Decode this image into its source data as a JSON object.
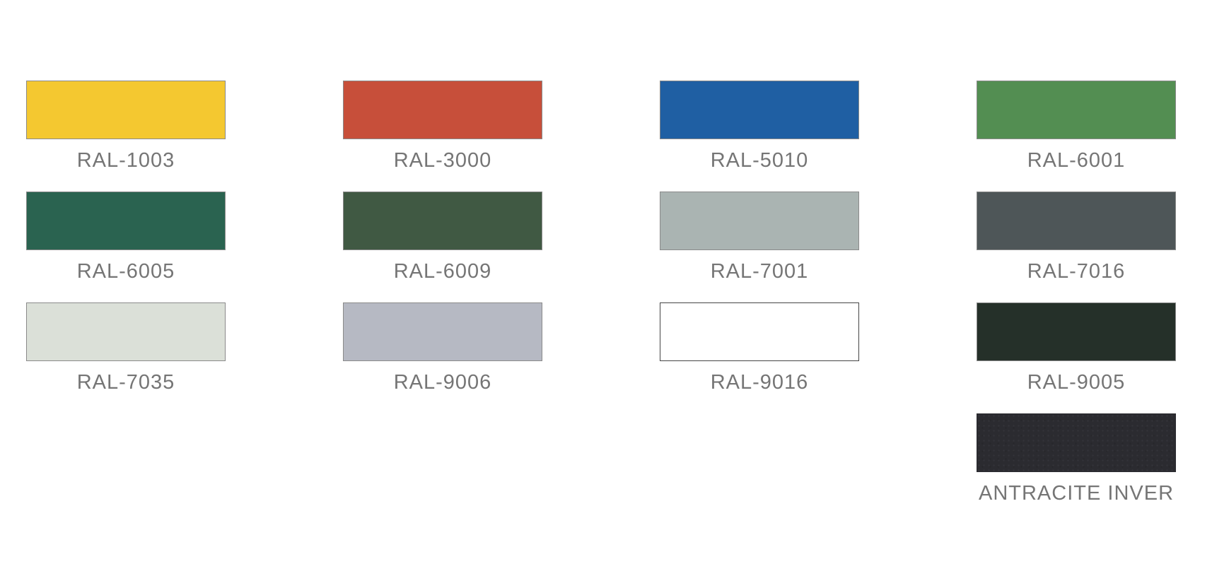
{
  "page": {
    "background": "#ffffff",
    "label_color": "#757575",
    "default_swatch_border": "#8a8a8a"
  },
  "palette": {
    "items": [
      {
        "label": "RAL-1003",
        "color": "#F4C830",
        "border": "#8a8a8a"
      },
      {
        "label": "RAL-3000",
        "color": "#C74F3A",
        "border": "#8a8a8a"
      },
      {
        "label": "RAL-5010",
        "color": "#1F5FA3",
        "border": "#8a8a8a"
      },
      {
        "label": "RAL-6001",
        "color": "#538E52",
        "border": "#8a8a8a"
      },
      {
        "label": "RAL-6005",
        "color": "#2A6350",
        "border": "#8a8a8a"
      },
      {
        "label": "RAL-6009",
        "color": "#405943",
        "border": "#8a8a8a"
      },
      {
        "label": "RAL-7001",
        "color": "#AAB4B2",
        "border": "#8a8a8a"
      },
      {
        "label": "RAL-7016",
        "color": "#4E5658",
        "border": "#8a8a8a"
      },
      {
        "label": "RAL-7035",
        "color": "#DBE0D8",
        "border": "#8a8a8a"
      },
      {
        "label": "RAL-9006",
        "color": "#B6B9C3",
        "border": "#8a8a8a"
      },
      {
        "label": "RAL-9016",
        "color": "#FFFFFF",
        "border": "#454545"
      },
      {
        "label": "RAL-9005",
        "color": "#253029",
        "border": "#8a8a8a"
      },
      {
        "label": "ANTRACITE INVER",
        "color": "#2B2B30",
        "border": "none"
      }
    ]
  }
}
